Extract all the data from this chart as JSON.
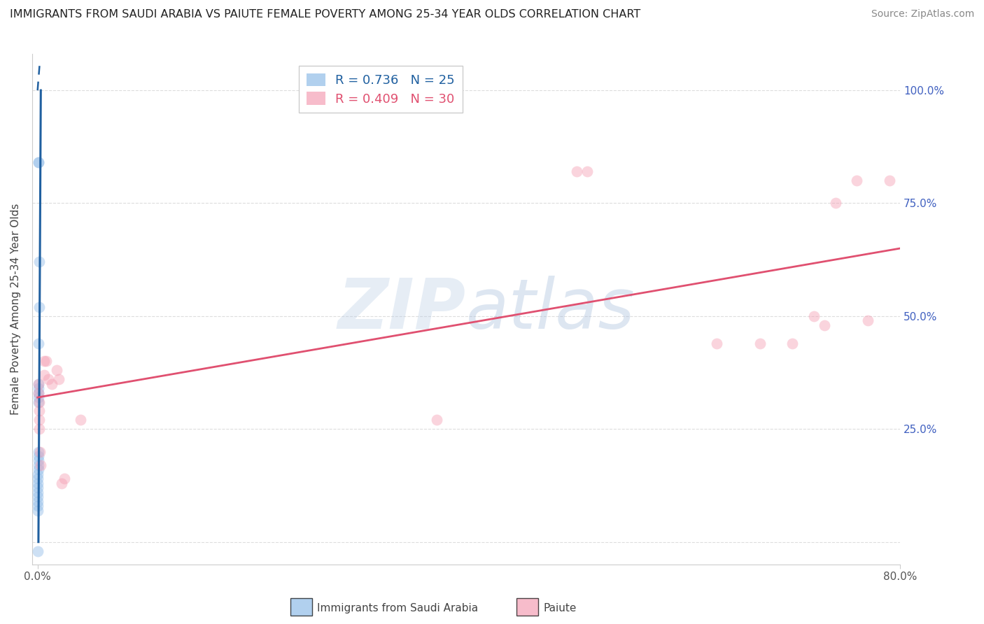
{
  "title": "IMMIGRANTS FROM SAUDI ARABIA VS PAIUTE FEMALE POVERTY AMONG 25-34 YEAR OLDS CORRELATION CHART",
  "source": "Source: ZipAtlas.com",
  "ylabel": "Female Poverty Among 25-34 Year Olds",
  "watermark": "ZIPatlas",
  "xlim": [
    -0.005,
    0.8
  ],
  "ylim": [
    -0.05,
    1.08
  ],
  "legend_R1": "R = 0.736",
  "legend_N1": "N = 25",
  "legend_R2": "R = 0.409",
  "legend_N2": "N = 30",
  "blue_scatter": [
    [
      0.0008,
      0.84
    ],
    [
      0.001,
      0.84
    ],
    [
      0.0015,
      0.62
    ],
    [
      0.0012,
      0.52
    ],
    [
      0.001,
      0.44
    ],
    [
      0.0008,
      0.35
    ],
    [
      0.0008,
      0.34
    ],
    [
      0.0007,
      0.33
    ],
    [
      0.0007,
      0.32
    ],
    [
      0.0007,
      0.31
    ],
    [
      0.0007,
      0.2
    ],
    [
      0.0007,
      0.19
    ],
    [
      0.0006,
      0.18
    ],
    [
      0.0006,
      0.17
    ],
    [
      0.0006,
      0.16
    ],
    [
      0.0005,
      0.15
    ],
    [
      0.0005,
      0.14
    ],
    [
      0.0005,
      0.13
    ],
    [
      0.0005,
      0.12
    ],
    [
      0.0005,
      0.11
    ],
    [
      0.0005,
      0.1
    ],
    [
      0.0005,
      0.09
    ],
    [
      0.0004,
      0.08
    ],
    [
      0.0004,
      0.07
    ],
    [
      0.0004,
      -0.02
    ]
  ],
  "pink_scatter": [
    [
      0.0008,
      0.35
    ],
    [
      0.001,
      0.33
    ],
    [
      0.0012,
      0.31
    ],
    [
      0.0012,
      0.29
    ],
    [
      0.0015,
      0.27
    ],
    [
      0.0015,
      0.25
    ],
    [
      0.002,
      0.2
    ],
    [
      0.0025,
      0.17
    ],
    [
      0.006,
      0.4
    ],
    [
      0.006,
      0.37
    ],
    [
      0.008,
      0.4
    ],
    [
      0.01,
      0.36
    ],
    [
      0.013,
      0.35
    ],
    [
      0.018,
      0.38
    ],
    [
      0.02,
      0.36
    ],
    [
      0.022,
      0.13
    ],
    [
      0.025,
      0.14
    ],
    [
      0.04,
      0.27
    ],
    [
      0.37,
      0.27
    ],
    [
      0.5,
      0.82
    ],
    [
      0.51,
      0.82
    ],
    [
      0.63,
      0.44
    ],
    [
      0.67,
      0.44
    ],
    [
      0.7,
      0.44
    ],
    [
      0.72,
      0.5
    ],
    [
      0.73,
      0.48
    ],
    [
      0.74,
      0.75
    ],
    [
      0.76,
      0.8
    ],
    [
      0.77,
      0.49
    ],
    [
      0.79,
      0.8
    ]
  ],
  "blue_line_solid": {
    "x": [
      0.0008,
      0.003
    ],
    "y": [
      0.0,
      1.0
    ]
  },
  "blue_line_dash": {
    "x": [
      0.0,
      0.002
    ],
    "y": [
      1.0,
      1.06
    ]
  },
  "pink_line": {
    "x": [
      0.0,
      0.8
    ],
    "y": [
      0.32,
      0.65
    ]
  },
  "scatter_size": 130,
  "scatter_alpha": 0.45,
  "blue_color": "#90bce8",
  "pink_color": "#f4a0b5",
  "blue_line_color": "#2060a0",
  "pink_line_color": "#e05070",
  "ytick_color": "#4060c0",
  "grid_color": "#dddddd",
  "background_color": "#ffffff"
}
